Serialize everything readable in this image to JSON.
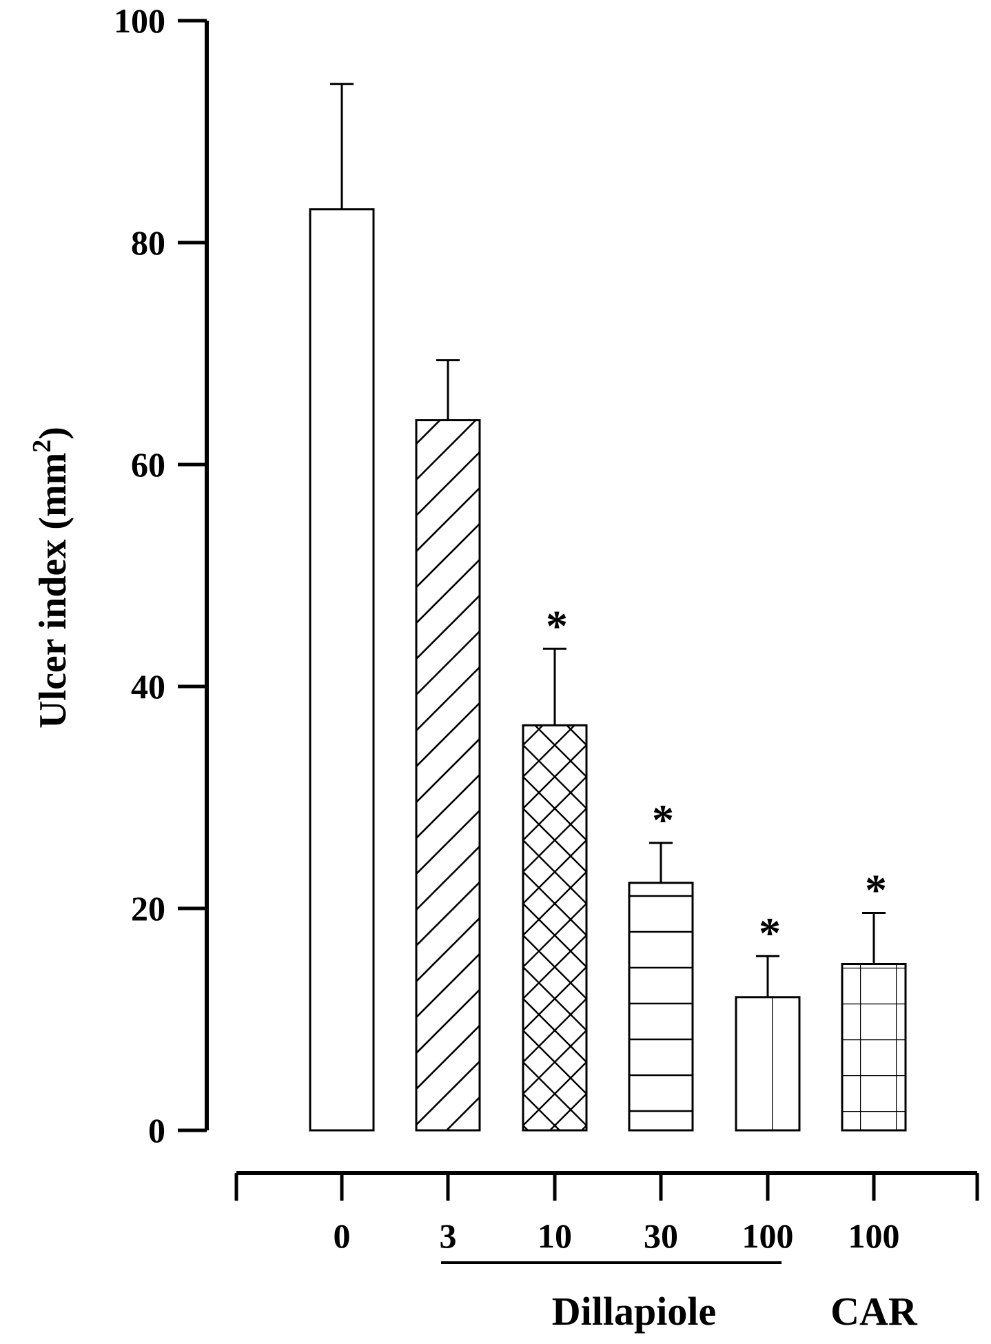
{
  "chart_data": {
    "type": "bar",
    "ylabel": "Ulcer index (mm",
    "ylabel_superscript": "2",
    "ylabel_close": ")",
    "ylim": [
      0,
      100
    ],
    "yticks": [
      0,
      20,
      40,
      60,
      80,
      100
    ],
    "grid": false,
    "colors": {
      "bar_fill": "#ffffff",
      "stroke": "#000000"
    },
    "bars": [
      {
        "category": "0",
        "value": 83,
        "error": 11.3,
        "pattern": "none",
        "significant": false
      },
      {
        "category": "3",
        "value": 64,
        "error": 5.4,
        "pattern": "diagonal",
        "significant": false
      },
      {
        "category": "10",
        "value": 36.5,
        "error": 6.9,
        "pattern": "crosshatch",
        "significant": true
      },
      {
        "category": "30",
        "value": 22.3,
        "error": 3.6,
        "pattern": "horizontal",
        "significant": true
      },
      {
        "category": "100",
        "value": 12,
        "error": 3.7,
        "pattern": "vertical",
        "significant": true
      },
      {
        "category": "100",
        "value": 15,
        "error": 4.6,
        "pattern": "grid",
        "significant": true
      }
    ],
    "significance_marker": "*",
    "groups": [
      {
        "label": "Dillapiole",
        "from_index": 1,
        "to_index": 4,
        "underline": true
      },
      {
        "label": "CAR",
        "from_index": 5,
        "to_index": 5,
        "underline": false
      }
    ]
  }
}
